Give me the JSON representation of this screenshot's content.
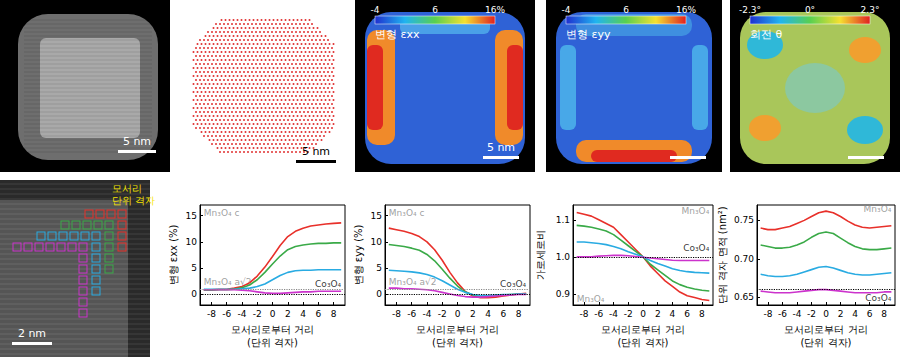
{
  "chart_data": [
    {
      "type": "line",
      "x_label": "모서리로부터 거리\n(단위 격자)",
      "y_label": "변형 εxx (%)",
      "x": [
        -9,
        -8,
        -7,
        -6,
        -5,
        -4,
        -3,
        -2,
        -1,
        0,
        1,
        2,
        3,
        4,
        5,
        6,
        7,
        8,
        9
      ],
      "xlim": [
        -9.5,
        9.5
      ],
      "xticks": [
        -8,
        -6,
        -4,
        -2,
        0,
        2,
        4,
        6,
        8
      ],
      "ylim": [
        -2,
        17
      ],
      "yticks": [
        0,
        5,
        10,
        15
      ],
      "grid": false,
      "series": [
        {
          "color": "#e8302a",
          "values": [
            0.8,
            0.9,
            1.0,
            1.0,
            1.2,
            1.5,
            2.2,
            3.5,
            5.2,
            7.2,
            9.3,
            11.0,
            12.0,
            12.6,
            13.0,
            13.2,
            13.4,
            13.5,
            13.6
          ]
        },
        {
          "color": "#3aaa48",
          "values": [
            0.8,
            0.8,
            0.9,
            0.9,
            1.0,
            1.3,
            1.8,
            2.8,
            4.2,
            5.8,
            7.3,
            8.5,
            9.1,
            9.4,
            9.6,
            9.7,
            9.7,
            9.8,
            9.8
          ]
        },
        {
          "color": "#29abe2",
          "values": [
            1.0,
            1.0,
            1.0,
            1.0,
            1.0,
            1.1,
            1.2,
            1.5,
            2.0,
            2.8,
            3.6,
            4.2,
            4.5,
            4.6,
            4.6,
            4.7,
            4.7,
            4.7,
            4.7
          ]
        },
        {
          "color": "#cc33cc",
          "values": [
            0.9,
            0.9,
            0.9,
            0.9,
            0.9,
            0.8,
            0.7,
            0.5,
            0.3,
            0.2,
            0.2,
            0.3,
            0.4,
            0.5,
            0.5,
            0.6,
            0.6,
            0.6,
            0.6
          ]
        }
      ],
      "reference_lines": [
        {
          "y": 0,
          "color": "#000000",
          "line_style": "dotted"
        },
        {
          "y": 0.9,
          "color": "#888888",
          "line_style": "dotted"
        }
      ],
      "annotations": [
        {
          "text": "Mn₃O₄ c",
          "x": -9,
          "y": 15.5,
          "color": "#888888"
        },
        {
          "text": "Mn₃O₄ a√2",
          "x": -9,
          "y": 2.3,
          "color": "#888888"
        },
        {
          "text": "Co₃O₄",
          "x": 9,
          "y": 1.9,
          "color": "#000000"
        }
      ]
    },
    {
      "type": "line",
      "x_label": "모서리로부터 거리\n(단위 격자)",
      "y_label": "변형 εyy (%)",
      "x": [
        -9,
        -8,
        -7,
        -6,
        -5,
        -4,
        -3,
        -2,
        -1,
        0,
        1,
        2,
        3,
        4,
        5,
        6,
        7,
        8,
        9
      ],
      "xlim": [
        -9.5,
        9.5
      ],
      "xticks": [
        -8,
        -6,
        -4,
        -2,
        0,
        2,
        4,
        6,
        8
      ],
      "ylim": [
        -2,
        17
      ],
      "yticks": [
        0,
        5,
        10,
        15
      ],
      "grid": false,
      "series": [
        {
          "color": "#e8302a",
          "values": [
            12.6,
            12.3,
            12.0,
            11.6,
            11.0,
            10.0,
            8.5,
            6.5,
            4.2,
            2.2,
            0.6,
            -0.3,
            -0.6,
            -0.6,
            -0.5,
            -0.3,
            -0.1,
            0.1,
            0.2
          ]
        },
        {
          "color": "#3aaa48",
          "values": [
            9.5,
            9.3,
            9.1,
            8.8,
            8.4,
            7.6,
            6.4,
            4.8,
            3.1,
            1.6,
            0.5,
            -0.1,
            -0.3,
            -0.3,
            -0.2,
            -0.1,
            0.0,
            0.1,
            0.1
          ]
        },
        {
          "color": "#29abe2",
          "values": [
            4.6,
            4.5,
            4.4,
            4.3,
            4.1,
            3.8,
            3.3,
            2.6,
            1.8,
            1.0,
            0.4,
            0.0,
            -0.2,
            -0.2,
            -0.1,
            0.0,
            0.0,
            0.1,
            0.1
          ]
        },
        {
          "color": "#cc33cc",
          "values": [
            1.2,
            1.2,
            1.1,
            1.1,
            1.0,
            0.9,
            0.7,
            0.4,
            0.1,
            -0.2,
            -0.4,
            -0.5,
            -0.5,
            -0.4,
            -0.3,
            -0.2,
            -0.1,
            0.0,
            0.0
          ]
        }
      ],
      "reference_lines": [
        {
          "y": 0,
          "color": "#000000",
          "line_style": "dotted"
        },
        {
          "y": 0.9,
          "color": "#888888",
          "line_style": "dotted"
        }
      ],
      "annotations": [
        {
          "text": "Mn₃O₄ c",
          "x": -9,
          "y": 15.5,
          "color": "#888888"
        },
        {
          "text": "Mn₃O₄ a√2",
          "x": -9,
          "y": 2.3,
          "color": "#888888"
        },
        {
          "text": "Co₃O₄",
          "x": 9,
          "y": 1.9,
          "color": "#000000"
        }
      ]
    },
    {
      "type": "line",
      "x_label": "모서리로부터 거리\n(단위 격자)",
      "y_label": "가로세로비",
      "x": [
        -9,
        -8,
        -7,
        -6,
        -5,
        -4,
        -3,
        -2,
        -1,
        0,
        1,
        2,
        3,
        4,
        5,
        6,
        7,
        8,
        9
      ],
      "xlim": [
        -9.5,
        9.5
      ],
      "xticks": [
        -8,
        -6,
        -4,
        -2,
        0,
        2,
        4,
        6,
        8
      ],
      "ylim": [
        0.87,
        1.14
      ],
      "yticks": [
        0.9,
        {
          "value": 1.0,
          "label": "1.0"
        },
        1.1
      ],
      "grid": false,
      "series": [
        {
          "color": "#e8302a",
          "values": [
            1.12,
            1.115,
            1.11,
            1.1,
            1.09,
            1.08,
            1.06,
            1.04,
            1.02,
            1.0,
            0.975,
            0.955,
            0.935,
            0.92,
            0.905,
            0.895,
            0.89,
            0.885,
            0.882
          ]
        },
        {
          "color": "#3aaa48",
          "values": [
            1.085,
            1.083,
            1.08,
            1.075,
            1.07,
            1.06,
            1.045,
            1.03,
            1.015,
            1.0,
            0.98,
            0.965,
            0.95,
            0.935,
            0.925,
            0.918,
            0.913,
            0.91,
            0.908
          ]
        },
        {
          "color": "#29abe2",
          "values": [
            1.04,
            1.04,
            1.038,
            1.036,
            1.033,
            1.028,
            1.022,
            1.014,
            1.007,
            1.0,
            0.99,
            0.982,
            0.975,
            0.968,
            0.963,
            0.96,
            0.958,
            0.957,
            0.956
          ]
        },
        {
          "color": "#cc33cc",
          "values": [
            1.0,
            1.0,
            1.0,
            1.002,
            1.003,
            1.004,
            1.004,
            1.003,
            1.001,
            0.999,
            0.997,
            0.995,
            0.993,
            0.991,
            0.99,
            0.99,
            0.99,
            0.99,
            0.99
          ]
        }
      ],
      "reference_lines": [
        {
          "y": 1.0,
          "color": "#000000",
          "line_style": "dotted"
        }
      ],
      "annotations": [
        {
          "text": "Mn₃O₄",
          "x": 9,
          "y": 1.125,
          "color": "#888888"
        },
        {
          "text": "Co₃O₄",
          "x": 9,
          "y": 1.025,
          "color": "#000000"
        },
        {
          "text": "Mn₃O₄",
          "x": -9,
          "y": 0.885,
          "color": "#888888"
        }
      ]
    },
    {
      "type": "line",
      "x_label": "모서리로부터 거리\n(단위 격자)",
      "y_label": "단위 격자 면적 (nm²)",
      "x": [
        -9,
        -8,
        -7,
        -6,
        -5,
        -4,
        -3,
        -2,
        -1,
        0,
        1,
        2,
        3,
        4,
        5,
        6,
        7,
        8,
        9
      ],
      "xlim": [
        -9.5,
        9.5
      ],
      "xticks": [
        -8,
        -6,
        -4,
        -2,
        0,
        2,
        4,
        6,
        8
      ],
      "ylim": [
        0.64,
        0.77
      ],
      "yticks": [
        0.65,
        {
          "value": 0.7,
          "label": "0.70"
        },
        0.75
      ],
      "grid": false,
      "series": [
        {
          "color": "#e8302a",
          "values": [
            0.74,
            0.738,
            0.738,
            0.74,
            0.742,
            0.746,
            0.75,
            0.755,
            0.76,
            0.762,
            0.76,
            0.755,
            0.749,
            0.744,
            0.741,
            0.74,
            0.741,
            0.742,
            0.743
          ]
        },
        {
          "color": "#3aaa48",
          "values": [
            0.718,
            0.716,
            0.714,
            0.714,
            0.715,
            0.718,
            0.722,
            0.728,
            0.733,
            0.735,
            0.733,
            0.727,
            0.721,
            0.716,
            0.713,
            0.712,
            0.712,
            0.713,
            0.714
          ]
        },
        {
          "color": "#29abe2",
          "values": [
            0.68,
            0.678,
            0.677,
            0.677,
            0.678,
            0.68,
            0.683,
            0.686,
            0.689,
            0.69,
            0.688,
            0.685,
            0.682,
            0.68,
            0.679,
            0.679,
            0.68,
            0.681,
            0.682
          ]
        },
        {
          "color": "#cc33cc",
          "values": [
            0.658,
            0.657,
            0.656,
            0.656,
            0.656,
            0.657,
            0.658,
            0.659,
            0.66,
            0.66,
            0.659,
            0.658,
            0.657,
            0.656,
            0.656,
            0.656,
            0.656,
            0.657,
            0.657
          ]
        }
      ],
      "reference_lines": [
        {
          "y": 0.655,
          "color": "#000000",
          "line_style": "dotted"
        }
      ],
      "annotations": [
        {
          "text": "Mn₃O₄",
          "x": 9,
          "y": 0.765,
          "color": "#888888"
        },
        {
          "text": "Co₃O₄",
          "x": 9,
          "y": 0.649,
          "color": "#000000"
        }
      ]
    }
  ],
  "image_panels": [
    {
      "scale_bar": "5 nm"
    },
    {
      "scale_bar": "5 nm"
    },
    {
      "title": "변형 εxx",
      "colorbar": {
        "range": [
          -4,
          16
        ],
        "ticks": [
          -4,
          6,
          {
            "value": 16,
            "label": "16%"
          }
        ]
      },
      "scale_bar": "5 nm"
    },
    {
      "title": "변형 εyy",
      "colorbar": {
        "range": [
          -4,
          16
        ],
        "ticks": [
          -4,
          6,
          {
            "value": 16,
            "label": "16%"
          }
        ]
      }
    },
    {
      "title": "회전 θ",
      "colorbar": {
        "range": [
          -2.3,
          2.3
        ],
        "ticks": [
          {
            "value": -2.3,
            "label": "-2.3°"
          },
          {
            "value": 0,
            "label": "0°"
          },
          {
            "value": 2.3,
            "label": "2.3°"
          }
        ]
      }
    },
    {
      "annotation": "모서리\n단위 격자",
      "scale_bar": "2 nm"
    }
  ]
}
